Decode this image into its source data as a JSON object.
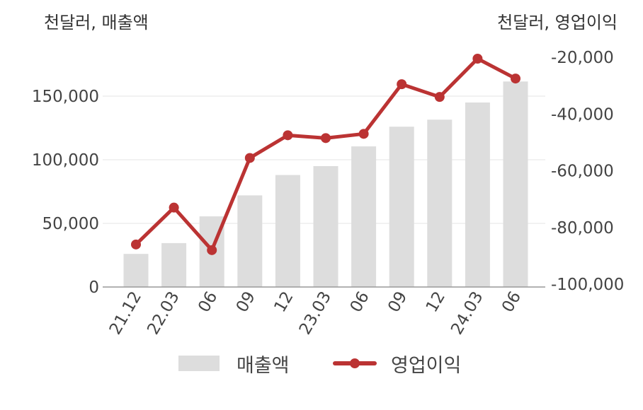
{
  "units": {
    "left": "천달러, 매출액",
    "right": "천달러, 영업이익"
  },
  "colors": {
    "bar": "#dddddd",
    "line": "#bb3333",
    "grid": "#e6e6e6",
    "axis": "#999999",
    "text": "#444444"
  },
  "legend": {
    "bar_label": "매출액",
    "line_label": "영업이익"
  },
  "chart_data": {
    "type": "bar",
    "categories": [
      "21.12",
      "22.03",
      "06",
      "09",
      "12",
      "23.03",
      "06",
      "09",
      "12",
      "24.03",
      "06"
    ],
    "series": [
      {
        "name": "매출액",
        "type": "bar",
        "axis": "left",
        "values": [
          26000,
          34500,
          55500,
          72000,
          88000,
          95000,
          110500,
          126000,
          131500,
          145000,
          161500
        ]
      },
      {
        "name": "영업이익",
        "type": "line",
        "axis": "right",
        "values": [
          -86000,
          -73000,
          -88000,
          -55500,
          -47500,
          -48500,
          -47000,
          -29500,
          -34000,
          -20500,
          -27500
        ]
      }
    ],
    "y_left": {
      "ticks": [
        "0",
        "50,000",
        "100,000",
        "150,000"
      ],
      "tick_values": [
        0,
        50000,
        100000,
        150000
      ],
      "lim": [
        0,
        180000
      ]
    },
    "y_right": {
      "ticks": [
        "-100,000",
        "-80,000",
        "-60,000",
        "-40,000",
        "-20,000"
      ],
      "tick_values": [
        -100000,
        -80000,
        -60000,
        -40000,
        -20000
      ],
      "lim": [
        -100000,
        -10000
      ]
    },
    "grid": true,
    "legend_position": "bottom"
  }
}
